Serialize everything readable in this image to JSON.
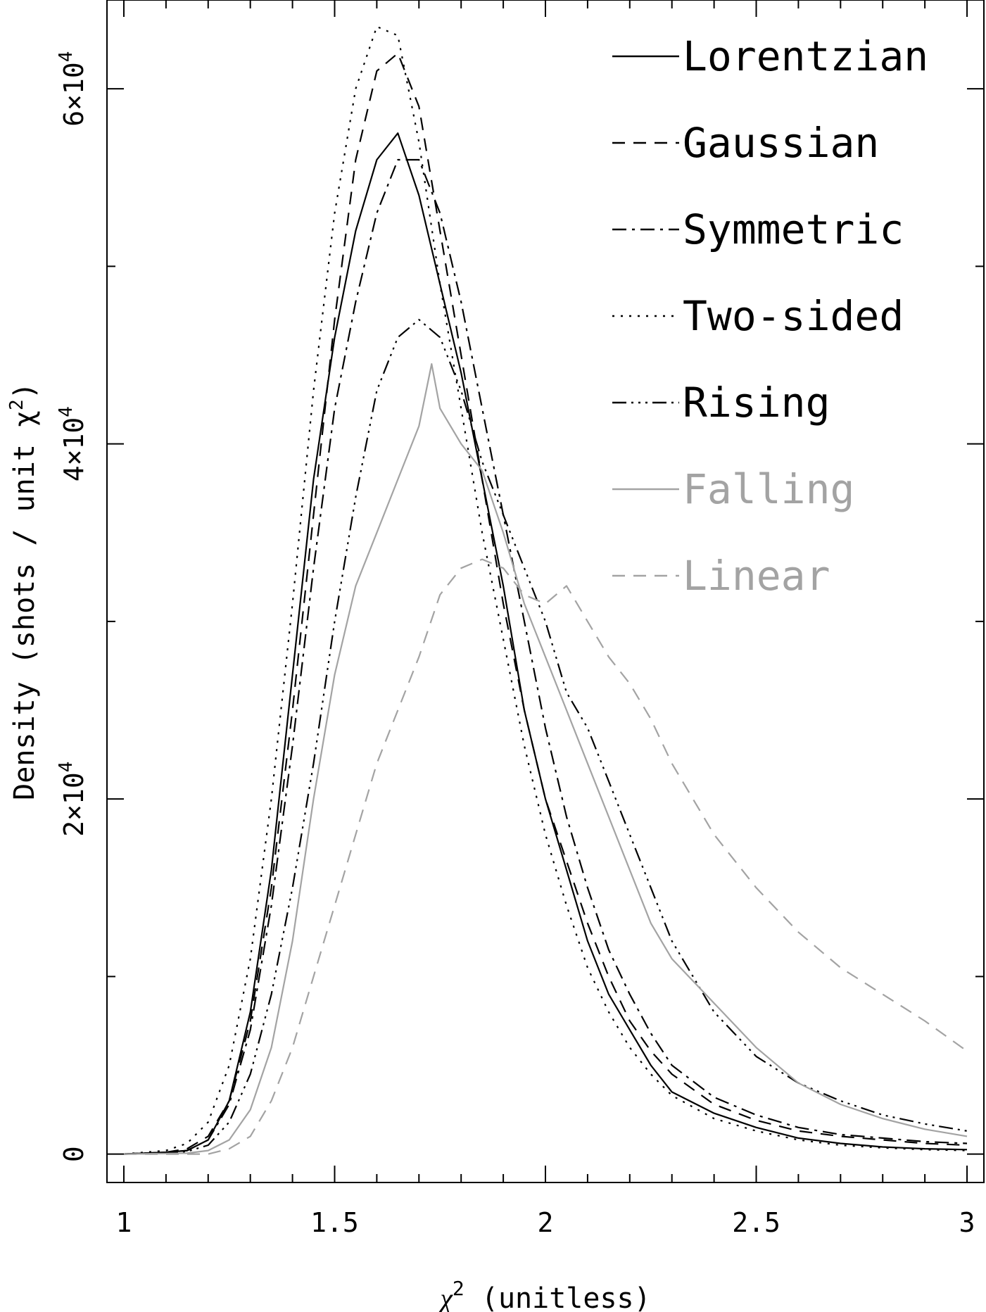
{
  "chart_data": {
    "type": "line",
    "xlabel_main": "χ",
    "xlabel_sup": "2",
    "xlabel_rest": " (unitless)",
    "ylabel_main": "Density (shots / unit χ",
    "ylabel_sup": "2",
    "ylabel_end": ")",
    "xlim": [
      0.96,
      3.04
    ],
    "ylim": [
      -1600,
      65000
    ],
    "xticks": [
      1,
      1.5,
      2,
      2.5,
      3
    ],
    "xtick_labels": [
      "1",
      "1.5",
      "2",
      "2.5",
      "3"
    ],
    "yticks": [
      0,
      20000,
      40000,
      60000
    ],
    "ytick_labels": [
      {
        "base": "0",
        "exp": ""
      },
      {
        "base": "2×10",
        "exp": "4"
      },
      {
        "base": "4×10",
        "exp": "4"
      },
      {
        "base": "6×10",
        "exp": "4"
      }
    ],
    "x_minor_step": 0.1,
    "y_minor_step": 10000,
    "legend_position": "top-right",
    "series": [
      {
        "name": "Lorentzian",
        "color": "#000000",
        "dash": "none",
        "points": [
          [
            1.0,
            0
          ],
          [
            1.1,
            100
          ],
          [
            1.15,
            200
          ],
          [
            1.2,
            800
          ],
          [
            1.25,
            3000
          ],
          [
            1.3,
            8000
          ],
          [
            1.35,
            16000
          ],
          [
            1.4,
            27000
          ],
          [
            1.45,
            38000
          ],
          [
            1.5,
            46000
          ],
          [
            1.55,
            52000
          ],
          [
            1.6,
            56000
          ],
          [
            1.65,
            57500
          ],
          [
            1.7,
            54000
          ],
          [
            1.75,
            49000
          ],
          [
            1.8,
            44000
          ],
          [
            1.85,
            38000
          ],
          [
            1.9,
            32000
          ],
          [
            1.95,
            25000
          ],
          [
            2.0,
            20000
          ],
          [
            2.05,
            16000
          ],
          [
            2.1,
            12000
          ],
          [
            2.15,
            9000
          ],
          [
            2.2,
            7000
          ],
          [
            2.25,
            5000
          ],
          [
            2.3,
            3500
          ],
          [
            2.4,
            2300
          ],
          [
            2.5,
            1500
          ],
          [
            2.6,
            900
          ],
          [
            2.7,
            600
          ],
          [
            2.8,
            400
          ],
          [
            2.9,
            300
          ],
          [
            3.0,
            250
          ]
        ]
      },
      {
        "name": "Gaussian",
        "color": "#000000",
        "dash": "18,12",
        "points": [
          [
            1.0,
            0
          ],
          [
            1.1,
            100
          ],
          [
            1.15,
            300
          ],
          [
            1.2,
            1000
          ],
          [
            1.25,
            3000
          ],
          [
            1.3,
            7500
          ],
          [
            1.35,
            15000
          ],
          [
            1.4,
            25000
          ],
          [
            1.45,
            36000
          ],
          [
            1.5,
            47000
          ],
          [
            1.55,
            56000
          ],
          [
            1.6,
            61000
          ],
          [
            1.65,
            62000
          ],
          [
            1.7,
            59000
          ],
          [
            1.75,
            52000
          ],
          [
            1.8,
            45000
          ],
          [
            1.85,
            38000
          ],
          [
            1.9,
            31000
          ],
          [
            1.95,
            25000
          ],
          [
            2.0,
            20000
          ],
          [
            2.05,
            16500
          ],
          [
            2.1,
            13000
          ],
          [
            2.15,
            10000
          ],
          [
            2.2,
            7500
          ],
          [
            2.25,
            5800
          ],
          [
            2.3,
            4500
          ],
          [
            2.4,
            2800
          ],
          [
            2.5,
            1900
          ],
          [
            2.6,
            1300
          ],
          [
            2.7,
            1000
          ],
          [
            2.8,
            800
          ],
          [
            2.9,
            600
          ],
          [
            3.0,
            500
          ]
        ]
      },
      {
        "name": "Symmetric",
        "color": "#000000",
        "dash": "20,8,4,8",
        "points": [
          [
            1.0,
            0
          ],
          [
            1.1,
            100
          ],
          [
            1.15,
            200
          ],
          [
            1.2,
            800
          ],
          [
            1.25,
            2800
          ],
          [
            1.3,
            7000
          ],
          [
            1.35,
            14000
          ],
          [
            1.4,
            23000
          ],
          [
            1.45,
            33000
          ],
          [
            1.5,
            42000
          ],
          [
            1.55,
            48000
          ],
          [
            1.6,
            53000
          ],
          [
            1.65,
            56000
          ],
          [
            1.7,
            56000
          ],
          [
            1.75,
            53000
          ],
          [
            1.8,
            48000
          ],
          [
            1.85,
            42000
          ],
          [
            1.9,
            36000
          ],
          [
            1.95,
            30000
          ],
          [
            2.0,
            24000
          ],
          [
            2.05,
            19000
          ],
          [
            2.1,
            15000
          ],
          [
            2.15,
            11500
          ],
          [
            2.2,
            9000
          ],
          [
            2.25,
            6800
          ],
          [
            2.3,
            5000
          ],
          [
            2.4,
            3200
          ],
          [
            2.5,
            2200
          ],
          [
            2.6,
            1500
          ],
          [
            2.7,
            1100
          ],
          [
            2.8,
            900
          ],
          [
            2.9,
            700
          ],
          [
            3.0,
            600
          ]
        ]
      },
      {
        "name": "Two-sided",
        "color": "#000000",
        "dash": "3,9",
        "points": [
          [
            1.0,
            0
          ],
          [
            1.1,
            200
          ],
          [
            1.15,
            600
          ],
          [
            1.2,
            1800
          ],
          [
            1.25,
            5000
          ],
          [
            1.3,
            11000
          ],
          [
            1.35,
            20000
          ],
          [
            1.4,
            31000
          ],
          [
            1.45,
            43000
          ],
          [
            1.5,
            53000
          ],
          [
            1.55,
            60000
          ],
          [
            1.6,
            63500
          ],
          [
            1.65,
            63000
          ],
          [
            1.7,
            57000
          ],
          [
            1.75,
            49000
          ],
          [
            1.8,
            42000
          ],
          [
            1.85,
            35000
          ],
          [
            1.9,
            29000
          ],
          [
            1.95,
            23000
          ],
          [
            2.0,
            18000
          ],
          [
            2.05,
            14000
          ],
          [
            2.1,
            10500
          ],
          [
            2.15,
            8000
          ],
          [
            2.2,
            6000
          ],
          [
            2.25,
            4500
          ],
          [
            2.3,
            3300
          ],
          [
            2.4,
            2000
          ],
          [
            2.5,
            1300
          ],
          [
            2.6,
            800
          ],
          [
            2.7,
            500
          ],
          [
            2.8,
            350
          ],
          [
            2.9,
            250
          ],
          [
            3.0,
            200
          ]
        ]
      },
      {
        "name": "Rising",
        "color": "#000000",
        "dash": "20,7,3,7,3,7,3,7",
        "points": [
          [
            1.0,
            0
          ],
          [
            1.1,
            50
          ],
          [
            1.15,
            150
          ],
          [
            1.2,
            500
          ],
          [
            1.25,
            1800
          ],
          [
            1.3,
            4500
          ],
          [
            1.35,
            9000
          ],
          [
            1.4,
            15000
          ],
          [
            1.45,
            22000
          ],
          [
            1.5,
            30000
          ],
          [
            1.55,
            37000
          ],
          [
            1.6,
            43000
          ],
          [
            1.65,
            46000
          ],
          [
            1.7,
            47000
          ],
          [
            1.75,
            46000
          ],
          [
            1.8,
            43000
          ],
          [
            1.85,
            39000
          ],
          [
            1.9,
            36000
          ],
          [
            1.95,
            33000
          ],
          [
            2.0,
            30000
          ],
          [
            2.05,
            26000
          ],
          [
            2.1,
            24000
          ],
          [
            2.15,
            21000
          ],
          [
            2.2,
            18000
          ],
          [
            2.25,
            15000
          ],
          [
            2.3,
            12000
          ],
          [
            2.4,
            8000
          ],
          [
            2.5,
            5500
          ],
          [
            2.6,
            4000
          ],
          [
            2.7,
            3000
          ],
          [
            2.8,
            2200
          ],
          [
            2.9,
            1700
          ],
          [
            3.0,
            1300
          ]
        ]
      },
      {
        "name": "Falling",
        "color": "#a3a3a3",
        "dash": "none",
        "points": [
          [
            1.0,
            0
          ],
          [
            1.15,
            50
          ],
          [
            1.2,
            200
          ],
          [
            1.25,
            800
          ],
          [
            1.3,
            2500
          ],
          [
            1.35,
            6000
          ],
          [
            1.4,
            12000
          ],
          [
            1.45,
            20000
          ],
          [
            1.5,
            27000
          ],
          [
            1.55,
            32000
          ],
          [
            1.6,
            35000
          ],
          [
            1.65,
            38000
          ],
          [
            1.7,
            41000
          ],
          [
            1.73,
            44500
          ],
          [
            1.75,
            42000
          ],
          [
            1.8,
            40000
          ],
          [
            1.85,
            38500
          ],
          [
            1.9,
            35000
          ],
          [
            1.95,
            31000
          ],
          [
            2.0,
            28000
          ],
          [
            2.05,
            25000
          ],
          [
            2.1,
            22000
          ],
          [
            2.15,
            19000
          ],
          [
            2.2,
            16000
          ],
          [
            2.25,
            13000
          ],
          [
            2.3,
            11000
          ],
          [
            2.4,
            8500
          ],
          [
            2.5,
            6000
          ],
          [
            2.6,
            4000
          ],
          [
            2.7,
            2800
          ],
          [
            2.8,
            2000
          ],
          [
            2.9,
            1400
          ],
          [
            3.0,
            1000
          ]
        ]
      },
      {
        "name": "Linear",
        "color": "#a3a3a3",
        "dash": "18,12",
        "points": [
          [
            1.0,
            0
          ],
          [
            1.2,
            0
          ],
          [
            1.25,
            300
          ],
          [
            1.3,
            1000
          ],
          [
            1.35,
            3000
          ],
          [
            1.4,
            6000
          ],
          [
            1.45,
            10000
          ],
          [
            1.5,
            14000
          ],
          [
            1.55,
            18000
          ],
          [
            1.6,
            22000
          ],
          [
            1.65,
            25000
          ],
          [
            1.7,
            28000
          ],
          [
            1.75,
            31500
          ],
          [
            1.8,
            33000
          ],
          [
            1.85,
            33500
          ],
          [
            1.9,
            33000
          ],
          [
            1.95,
            31500
          ],
          [
            2.0,
            31000
          ],
          [
            2.05,
            32000
          ],
          [
            2.1,
            30000
          ],
          [
            2.15,
            28000
          ],
          [
            2.2,
            26500
          ],
          [
            2.25,
            24500
          ],
          [
            2.3,
            22000
          ],
          [
            2.4,
            18000
          ],
          [
            2.5,
            15000
          ],
          [
            2.6,
            12500
          ],
          [
            2.7,
            10500
          ],
          [
            2.8,
            9000
          ],
          [
            2.9,
            7500
          ],
          [
            3.0,
            5800
          ]
        ]
      }
    ]
  }
}
